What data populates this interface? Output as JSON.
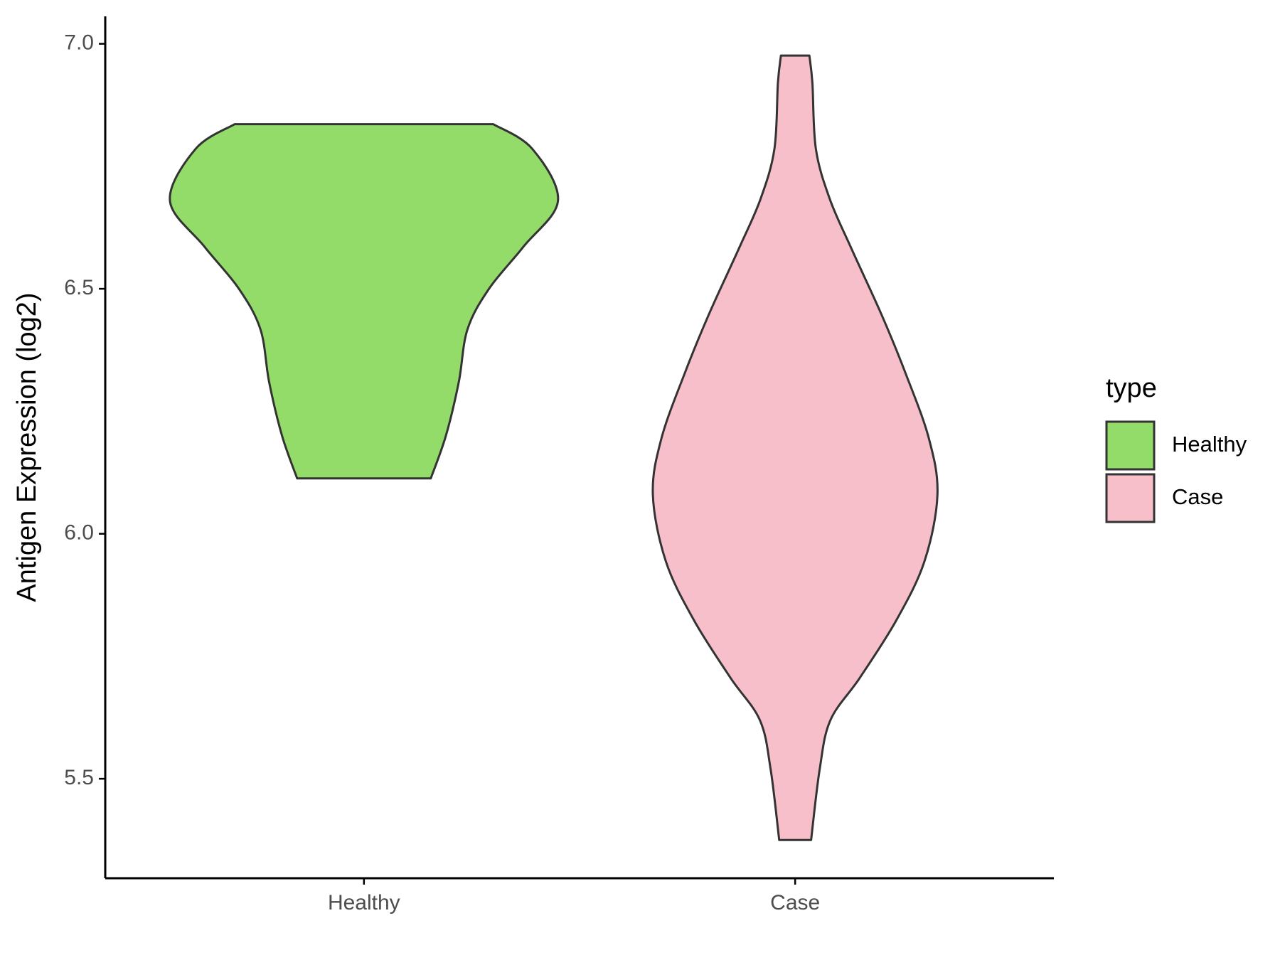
{
  "chart_data": {
    "type": "violin",
    "y_label": "Antigen Expression (log2)",
    "categories": [
      "Healthy",
      "Case"
    ],
    "legend_title": "type",
    "outline_color": "#333333",
    "series": [
      {
        "name": "Healthy",
        "color": "#93dc6a",
        "profile": [
          [
            6.113,
            0.155
          ],
          [
            6.2,
            0.19
          ],
          [
            6.31,
            0.22
          ],
          [
            6.417,
            0.24
          ],
          [
            6.5,
            0.29
          ],
          [
            6.586,
            0.37
          ],
          [
            6.68,
            0.45
          ],
          [
            6.786,
            0.39
          ],
          [
            6.836,
            0.3
          ]
        ]
      },
      {
        "name": "Case",
        "color": "#f7bfca",
        "profile": [
          [
            5.375,
            0.037
          ],
          [
            5.52,
            0.057
          ],
          [
            5.62,
            0.082
          ],
          [
            5.706,
            0.15
          ],
          [
            5.824,
            0.235
          ],
          [
            5.944,
            0.3
          ],
          [
            6.08,
            0.33
          ],
          [
            6.195,
            0.31
          ],
          [
            6.33,
            0.255
          ],
          [
            6.448,
            0.2
          ],
          [
            6.583,
            0.13
          ],
          [
            6.684,
            0.08
          ],
          [
            6.786,
            0.048
          ],
          [
            6.92,
            0.04
          ],
          [
            6.976,
            0.033
          ]
        ]
      }
    ],
    "ylim": [
      5.297,
      7.056
    ],
    "yticks": [
      5.5,
      {
        "value": 6,
        "label": "6.0"
      },
      6.5,
      {
        "value": 7,
        "label": "7.0"
      }
    ]
  }
}
